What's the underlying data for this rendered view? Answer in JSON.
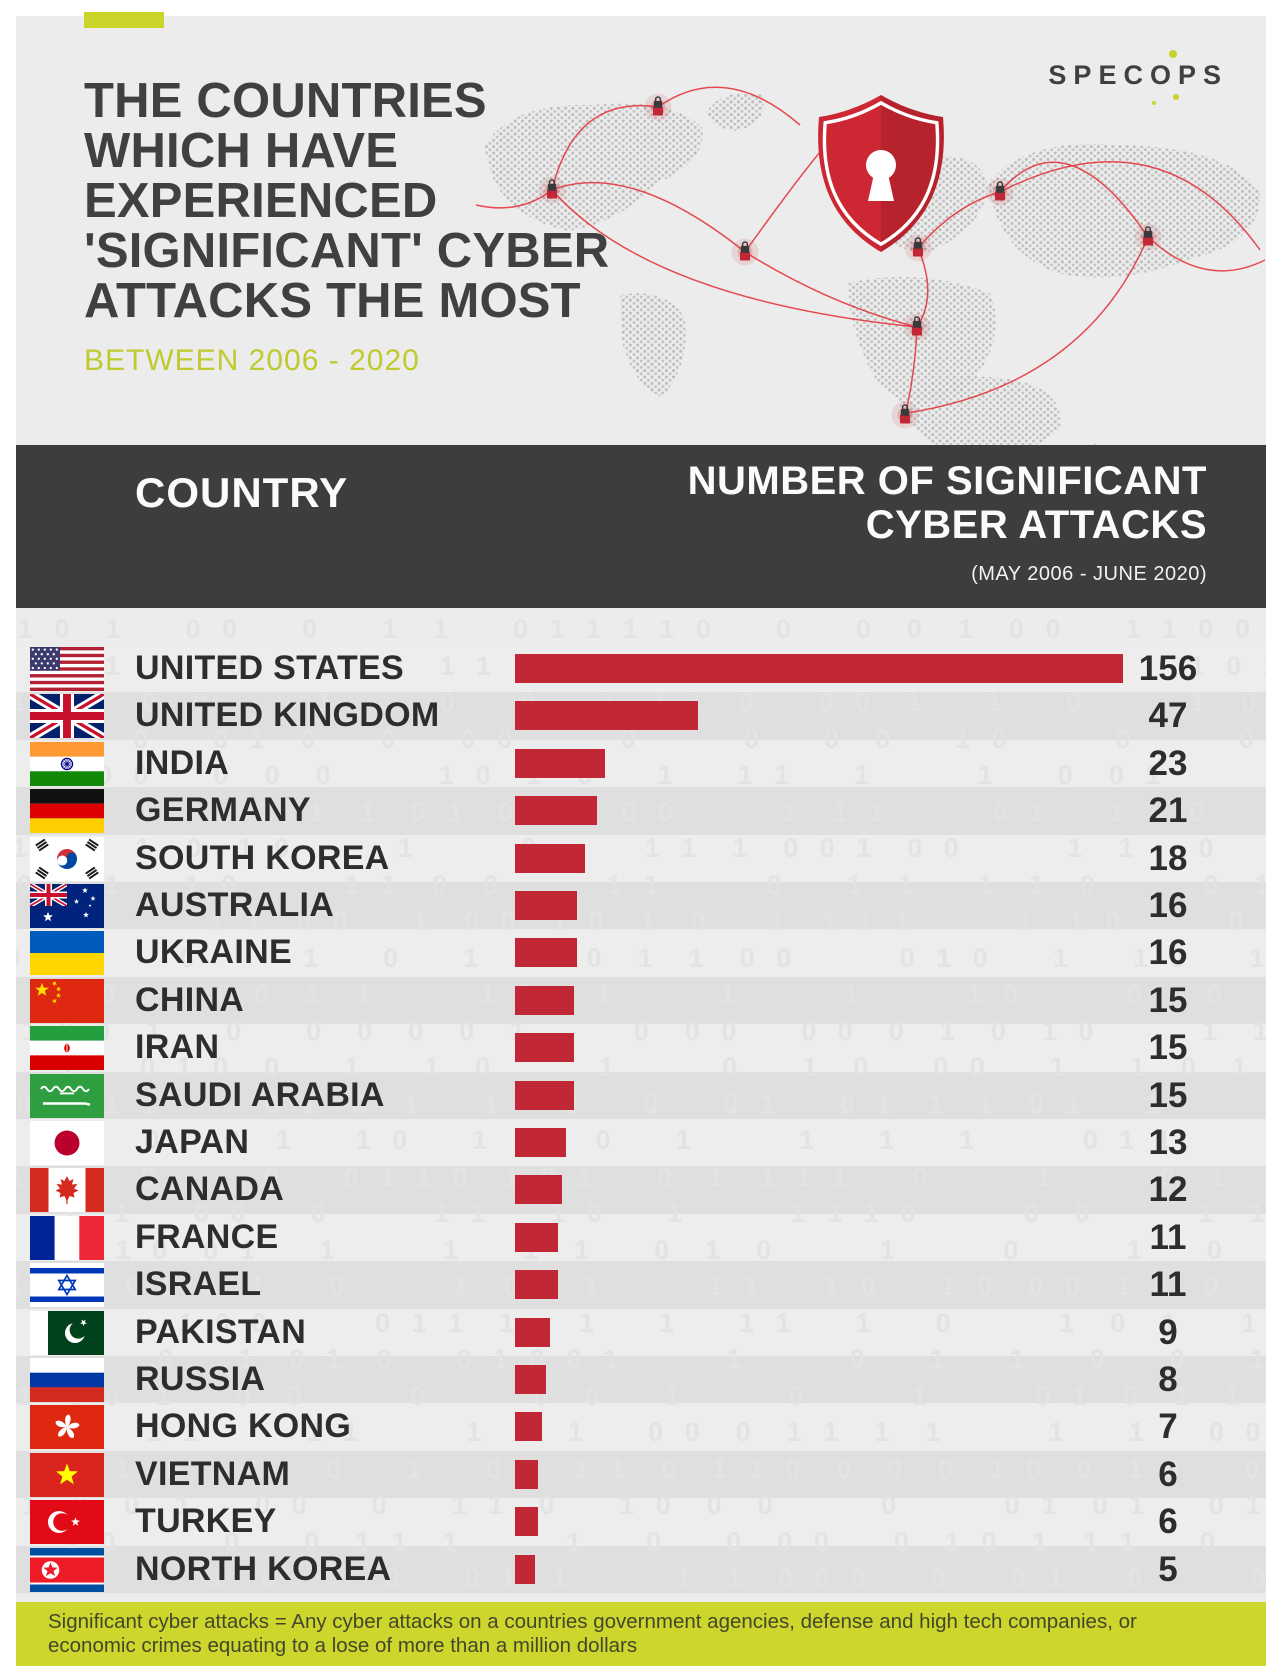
{
  "brand": {
    "logo_part1": "SPEC",
    "logo_part2": "O",
    "logo_part3": "PS"
  },
  "header": {
    "title_lines": [
      "THE COUNTRIES",
      "WHICH HAVE",
      "EXPERIENCED",
      "'SIGNIFICANT' CYBER",
      "ATTACKS THE MOST"
    ],
    "subtitle": "BETWEEN 2006 - 2020"
  },
  "table_header": {
    "country_label": "COUNTRY",
    "number_label_line1": "NUMBER OF SIGNIFICANT",
    "number_label_line2": "CYBER ATTACKS",
    "number_sublabel": "(MAY 2006 - JUNE 2020)"
  },
  "rows": [
    {
      "country": "UNITED STATES",
      "value": 156,
      "flag": "us"
    },
    {
      "country": "UNITED KINGDOM",
      "value": 47,
      "flag": "uk"
    },
    {
      "country": "INDIA",
      "value": 23,
      "flag": "india"
    },
    {
      "country": "GERMANY",
      "value": 21,
      "flag": "germany"
    },
    {
      "country": "SOUTH KOREA",
      "value": 18,
      "flag": "southkorea"
    },
    {
      "country": "AUSTRALIA",
      "value": 16,
      "flag": "australia"
    },
    {
      "country": "UKRAINE",
      "value": 16,
      "flag": "ukraine"
    },
    {
      "country": "CHINA",
      "value": 15,
      "flag": "china"
    },
    {
      "country": "IRAN",
      "value": 15,
      "flag": "iran"
    },
    {
      "country": "SAUDI ARABIA",
      "value": 15,
      "flag": "saudi"
    },
    {
      "country": "JAPAN",
      "value": 13,
      "flag": "japan"
    },
    {
      "country": "CANADA",
      "value": 12,
      "flag": "canada"
    },
    {
      "country": "FRANCE",
      "value": 11,
      "flag": "france"
    },
    {
      "country": "ISRAEL",
      "value": 11,
      "flag": "israel"
    },
    {
      "country": "PAKISTAN",
      "value": 9,
      "flag": "pakistan"
    },
    {
      "country": "RUSSIA",
      "value": 8,
      "flag": "russia"
    },
    {
      "country": "HONG KONG",
      "value": 7,
      "flag": "hongkong"
    },
    {
      "country": "VIETNAM",
      "value": 6,
      "flag": "vietnam"
    },
    {
      "country": "TURKEY",
      "value": 6,
      "flag": "turkey"
    },
    {
      "country": "NORTH KOREA",
      "value": 5,
      "flag": "northkorea"
    }
  ],
  "footer": {
    "note_line1": "Significant cyber attacks = Any cyber attacks on a countries government agencies, defense and high tech companies, or",
    "note_line2": "economic crimes equating to a lose of more than a million dollars"
  },
  "colors": {
    "accent_yellow_green": "#CBD42A",
    "bar_red": "#C22735",
    "header_band_dark": "#3D3C3E",
    "title_gray": "#403F41",
    "shield_red": "#CC2733"
  },
  "chart_data": {
    "type": "bar",
    "orientation": "horizontal",
    "title": "The countries which have experienced 'significant' cyber attacks the most",
    "subtitle": "Between 2006 - 2020 (May 2006 - June 2020)",
    "xlabel": "Number of significant cyber attacks",
    "ylabel": "Country",
    "xlim": [
      0,
      160
    ],
    "grid": false,
    "legend": "none",
    "bar_color": "#C22735",
    "categories": [
      "United States",
      "United Kingdom",
      "India",
      "Germany",
      "South Korea",
      "Australia",
      "Ukraine",
      "China",
      "Iran",
      "Saudi Arabia",
      "Japan",
      "Canada",
      "France",
      "Israel",
      "Pakistan",
      "Russia",
      "Hong Kong",
      "Vietnam",
      "Turkey",
      "North Korea"
    ],
    "values": [
      156,
      47,
      23,
      21,
      18,
      16,
      16,
      15,
      15,
      15,
      13,
      12,
      11,
      11,
      9,
      8,
      7,
      6,
      6,
      5
    ]
  }
}
